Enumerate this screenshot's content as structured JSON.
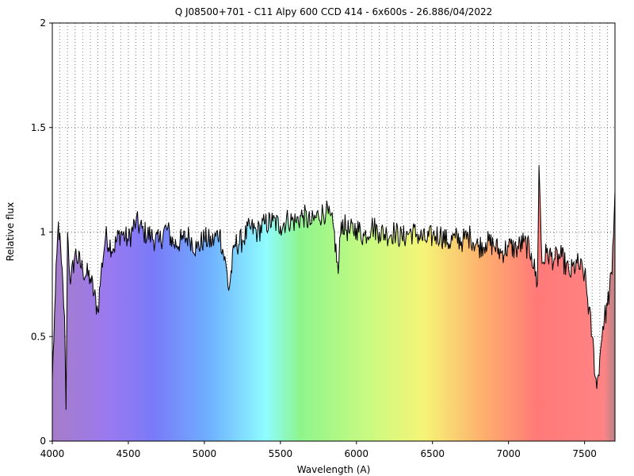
{
  "chart_data": {
    "type": "line",
    "title": "Q J08500+701 - C11 Alpy 600 CCD 414 - 6x600s - 26.886/04/2022",
    "xlabel": "Wavelength (A)",
    "ylabel": "Relative flux",
    "xlim": [
      4000,
      7700
    ],
    "ylim": [
      0,
      2
    ],
    "grid": true,
    "background": "visible spectrum color gradient under the curve",
    "x_ticks": [
      {
        "value": 4000,
        "label": "4000"
      },
      {
        "value": 4500,
        "label": "4500"
      },
      {
        "value": 5000,
        "label": "5000"
      },
      {
        "value": 5500,
        "label": "5500"
      },
      {
        "value": 6000,
        "label": "6000"
      },
      {
        "value": 6500,
        "label": "6500"
      },
      {
        "value": 7000,
        "label": "7000"
      },
      {
        "value": 7500,
        "label": "7500"
      }
    ],
    "y_ticks": [
      {
        "value": 0,
        "label": "0"
      },
      {
        "value": 0.5,
        "label": "0.5"
      },
      {
        "value": 1,
        "label": "1"
      },
      {
        "value": 1.5,
        "label": "1.5"
      },
      {
        "value": 2,
        "label": "2"
      }
    ],
    "series": [
      {
        "color": "#000000",
        "x": [
          4000,
          4020,
          4040,
          4060,
          4080,
          4090,
          4100,
          4120,
          4150,
          4200,
          4250,
          4300,
          4320,
          4350,
          4400,
          4450,
          4500,
          4550,
          4600,
          4650,
          4700,
          4750,
          4800,
          4850,
          4900,
          4950,
          5000,
          5050,
          5100,
          5150,
          5160,
          5200,
          5250,
          5300,
          5350,
          5400,
          5450,
          5500,
          5550,
          5600,
          5650,
          5700,
          5750,
          5800,
          5850,
          5880,
          5900,
          5950,
          6000,
          6050,
          6100,
          6150,
          6200,
          6250,
          6300,
          6350,
          6400,
          6450,
          6500,
          6550,
          6600,
          6650,
          6700,
          6750,
          6800,
          6850,
          6900,
          6950,
          7000,
          7050,
          7100,
          7150,
          7190,
          7200,
          7220,
          7250,
          7300,
          7350,
          7400,
          7450,
          7500,
          7550,
          7580,
          7600,
          7620,
          7650,
          7680,
          7700
        ],
        "y": [
          0.3,
          0.7,
          1.05,
          0.85,
          0.6,
          0.15,
          1.0,
          0.75,
          0.9,
          0.82,
          0.78,
          0.62,
          0.8,
          0.98,
          0.92,
          1.0,
          0.96,
          1.05,
          1.0,
          0.98,
          0.95,
          1.02,
          0.94,
          0.96,
          0.98,
          0.92,
          0.97,
          0.95,
          1.0,
          0.8,
          0.72,
          0.94,
          0.96,
          1.02,
          1.0,
          1.04,
          1.05,
          1.03,
          1.06,
          1.05,
          1.08,
          1.04,
          1.08,
          1.1,
          1.02,
          0.8,
          1.05,
          1.0,
          1.02,
          0.98,
          1.03,
          1.0,
          0.99,
          1.0,
          0.97,
          1.0,
          0.99,
          0.96,
          0.98,
          0.99,
          0.95,
          0.97,
          0.96,
          0.98,
          0.93,
          0.95,
          0.94,
          0.9,
          0.93,
          0.92,
          0.95,
          0.9,
          0.75,
          1.32,
          0.85,
          0.9,
          0.87,
          0.88,
          0.8,
          0.85,
          0.8,
          0.5,
          0.25,
          0.4,
          0.55,
          0.65,
          0.8,
          1.2
        ]
      }
    ]
  }
}
